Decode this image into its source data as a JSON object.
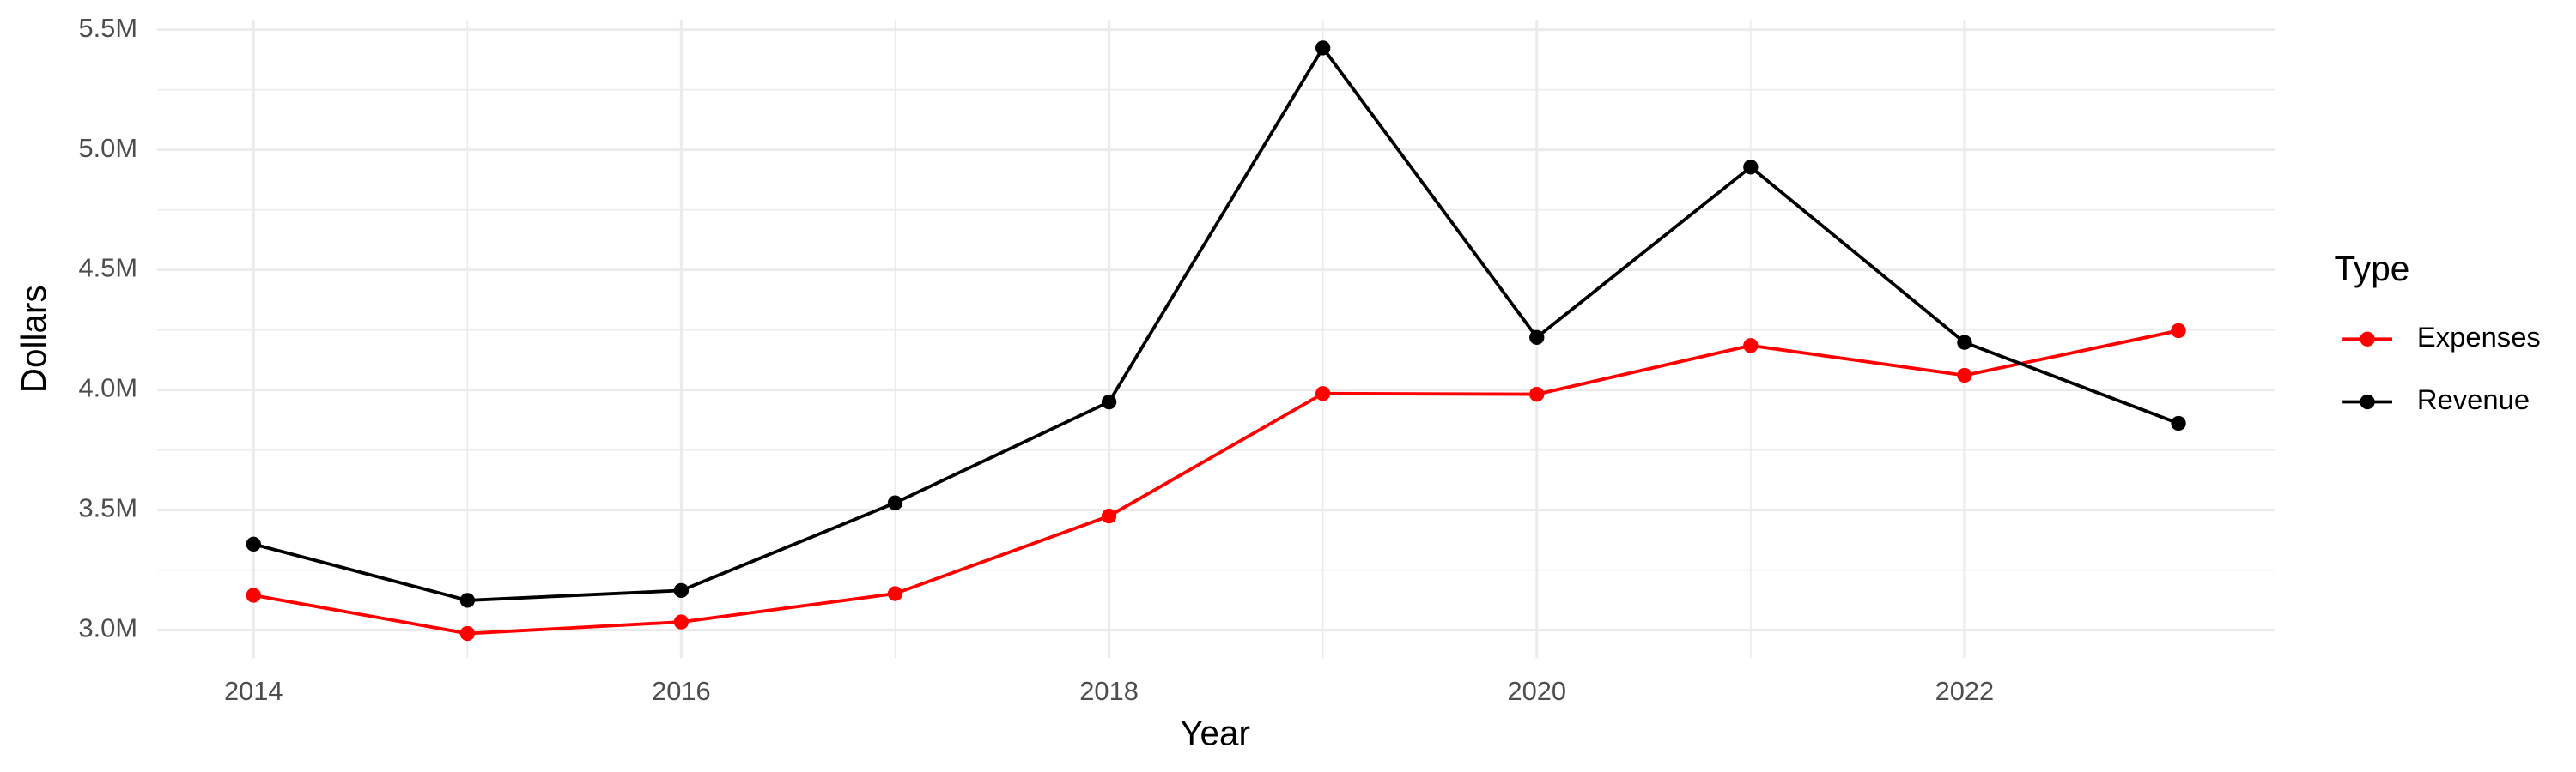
{
  "chart_data": {
    "type": "line",
    "x_label": "Year",
    "y_label": "Dollars",
    "legend_title": "Type",
    "legend_position": "right",
    "x": [
      2014,
      2015,
      2016,
      2017,
      2018,
      2019,
      2020,
      2021,
      2022,
      2023
    ],
    "series": [
      {
        "name": "Expenses",
        "color": "#ff0000",
        "values": [
          3145000,
          2986000,
          3034000,
          3152000,
          3475000,
          3985000,
          3982000,
          4185000,
          4061000,
          4247000
        ]
      },
      {
        "name": "Revenue",
        "color": "#000000",
        "values": [
          3358000,
          3124000,
          3165000,
          3530000,
          3950000,
          5424000,
          4219000,
          4928000,
          4198000,
          3861000
        ]
      }
    ],
    "xlim": [
      2013.55,
      2023.45
    ],
    "xticks": [
      2014,
      2016,
      2018,
      2020,
      2022
    ],
    "ylim": [
      2883000,
      5541000
    ],
    "yticks": [
      {
        "value": 3000000,
        "label": "3.0M"
      },
      {
        "value": 3500000,
        "label": "3.5M"
      },
      {
        "value": 4000000,
        "label": "4.0M"
      },
      {
        "value": 4500000,
        "label": "4.5M"
      },
      {
        "value": 5000000,
        "label": "5.0M"
      },
      {
        "value": 5500000,
        "label": "5.5M"
      }
    ],
    "grid": true
  }
}
